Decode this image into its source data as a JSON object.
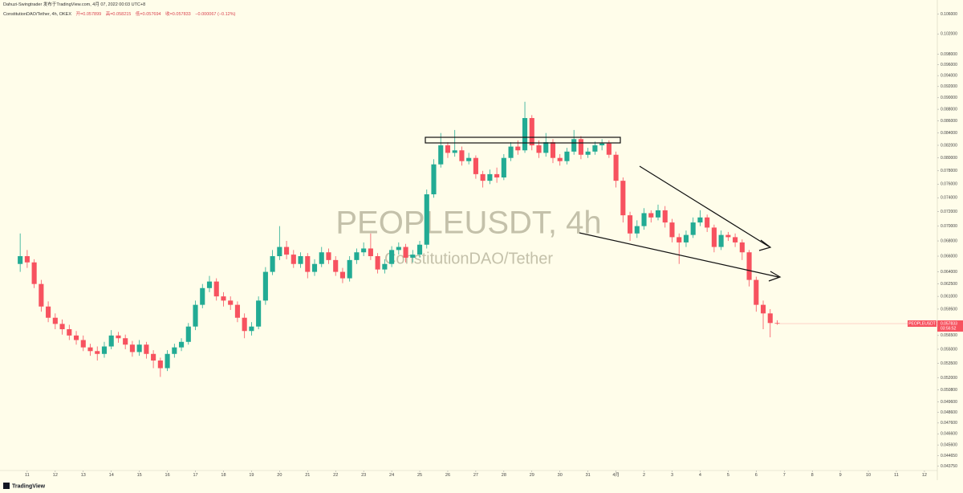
{
  "chart_data": {
    "type": "candlestick",
    "publisher": "Dahuzi-Swingtrader 发布于TradingView.com, 4月 07, 2022 00:03 UTC+8",
    "title": "ConstitutionDAO/Tether, 4h, OKEX",
    "ohlc_labels": [
      "开=0.057899",
      "高=0.058215",
      "低=0.057694",
      "收=0.057833",
      "−0.000067 (−0.12%)"
    ],
    "watermark_symbol": "PEOPLEUSDT, 4h",
    "watermark_name": "ConstitutionDAO/Tether",
    "price_tag": {
      "symbol": "PEOPLEUSDT",
      "price": "0.057833",
      "countdown": "03:56:52"
    },
    "brand": "TradingView",
    "up_color": "#22ab94",
    "down_color": "#f7525f",
    "log_scale": true,
    "grid": false,
    "xlim": [
      10.03,
      43.46
    ],
    "xticks": [
      11,
      12,
      13,
      14,
      15,
      16,
      17,
      18,
      19,
      20,
      21,
      22,
      23,
      24,
      25,
      26,
      27,
      28,
      29,
      30,
      31,
      {
        "value": 32,
        "label": "4月"
      },
      {
        "value": 33,
        "label": "2"
      },
      {
        "value": 34,
        "label": "3"
      },
      {
        "value": 35,
        "label": "4"
      },
      {
        "value": 36,
        "label": "5"
      },
      {
        "value": 37,
        "label": "6"
      },
      {
        "value": 38,
        "label": "7"
      },
      {
        "value": 39,
        "label": "8"
      },
      {
        "value": 40,
        "label": "9"
      },
      {
        "value": 41,
        "label": "10"
      },
      {
        "value": 42,
        "label": "11"
      },
      {
        "value": 43,
        "label": "12"
      }
    ],
    "ylim": [
      0.0431,
      0.1073
    ],
    "yticks": [
      {
        "value": 0.106,
        "label": "0.106000"
      },
      {
        "value": 0.102,
        "label": "0.102000"
      },
      {
        "value": 0.098,
        "label": "0.098000"
      },
      {
        "value": 0.096,
        "label": "0.096000"
      },
      {
        "value": 0.094,
        "label": "0.094000"
      },
      {
        "value": 0.092,
        "label": "0.092000"
      },
      {
        "value": 0.09,
        "label": "0.090000"
      },
      {
        "value": 0.088,
        "label": "0.088000"
      },
      {
        "value": 0.086,
        "label": "0.086000"
      },
      {
        "value": 0.084,
        "label": "0.084000"
      },
      {
        "value": 0.082,
        "label": "0.082000"
      },
      {
        "value": 0.08,
        "label": "0.080000"
      },
      {
        "value": 0.078,
        "label": "0.078000"
      },
      {
        "value": 0.076,
        "label": "0.076000"
      },
      {
        "value": 0.074,
        "label": "0.074000"
      },
      {
        "value": 0.072,
        "label": "0.072000"
      },
      {
        "value": 0.07,
        "label": "0.070000"
      },
      {
        "value": 0.068,
        "label": "0.068000"
      },
      {
        "value": 0.066,
        "label": "0.066000"
      },
      {
        "value": 0.064,
        "label": "0.064000"
      },
      {
        "value": 0.0625,
        "label": "0.062500"
      },
      {
        "value": 0.061,
        "label": "0.061000"
      },
      {
        "value": 0.0595,
        "label": "0.059500"
      },
      {
        "value": 0.0565,
        "label": "0.056500"
      },
      {
        "value": 0.055,
        "label": "0.055000"
      },
      {
        "value": 0.0535,
        "label": "0.053500"
      },
      {
        "value": 0.052,
        "label": "0.052000"
      },
      {
        "value": 0.0508,
        "label": "0.050800"
      },
      {
        "value": 0.0496,
        "label": "0.049600"
      },
      {
        "value": 0.0486,
        "label": "0.048600"
      },
      {
        "value": 0.0476,
        "label": "0.047600"
      },
      {
        "value": 0.0466,
        "label": "0.046600"
      },
      {
        "value": 0.0456,
        "label": "0.045600"
      },
      {
        "value": 0.04465,
        "label": "0.044650"
      },
      {
        "value": 0.04375,
        "label": "0.043750"
      }
    ],
    "x": [
      10.75,
      11,
      11.25,
      11.5,
      11.75,
      12,
      12.25,
      12.5,
      12.75,
      13,
      13.25,
      13.5,
      13.75,
      14,
      14.25,
      14.5,
      14.75,
      15,
      15.25,
      15.5,
      15.75,
      16,
      16.25,
      16.5,
      16.75,
      17,
      17.25,
      17.5,
      17.75,
      18,
      18.25,
      18.5,
      18.75,
      19,
      19.25,
      19.5,
      19.75,
      20,
      20.25,
      20.5,
      20.75,
      21,
      21.25,
      21.5,
      21.75,
      22,
      22.25,
      22.5,
      22.75,
      23,
      23.25,
      23.5,
      23.75,
      24,
      24.25,
      24.5,
      24.75,
      25,
      25.25,
      25.5,
      25.75,
      26,
      26.25,
      26.5,
      26.75,
      27,
      27.25,
      27.5,
      27.75,
      28,
      28.25,
      28.5,
      28.75,
      29,
      29.25,
      29.5,
      29.75,
      30,
      30.25,
      30.5,
      30.75,
      31,
      31.25,
      31.5,
      31.75,
      32,
      32.25,
      32.5,
      32.75,
      33,
      33.25,
      33.5,
      33.75,
      34,
      34.25,
      34.5,
      34.75,
      35,
      35.25,
      35.5,
      35.75,
      36,
      36.25,
      36.5,
      36.75,
      37,
      37.25,
      37.5,
      37.75
    ],
    "open": [
      0.065,
      0.066,
      0.0652,
      0.0625,
      0.0598,
      0.0585,
      0.0578,
      0.0572,
      0.0565,
      0.056,
      0.0552,
      0.0548,
      0.0545,
      0.0553,
      0.0565,
      0.0562,
      0.0555,
      0.0547,
      0.0555,
      0.0545,
      0.0538,
      0.053,
      0.0545,
      0.0552,
      0.0558,
      0.0575,
      0.06,
      0.062,
      0.0628,
      0.061,
      0.0605,
      0.06,
      0.0585,
      0.057,
      0.0575,
      0.0605,
      0.064,
      0.066,
      0.0672,
      0.0662,
      0.065,
      0.066,
      0.064,
      0.065,
      0.0665,
      0.0655,
      0.064,
      0.0632,
      0.0655,
      0.0665,
      0.067,
      0.066,
      0.0643,
      0.065,
      0.0668,
      0.0672,
      0.0658,
      0.0662,
      0.0675,
      0.0745,
      0.079,
      0.082,
      0.0808,
      0.0812,
      0.0795,
      0.08,
      0.0775,
      0.0765,
      0.0775,
      0.077,
      0.08,
      0.0818,
      0.0812,
      0.0865,
      0.082,
      0.0808,
      0.0825,
      0.08,
      0.0795,
      0.081,
      0.083,
      0.0805,
      0.081,
      0.082,
      0.0823,
      0.0805,
      0.0765,
      0.0715,
      0.069,
      0.07,
      0.0718,
      0.0712,
      0.0722,
      0.0705,
      0.0685,
      0.0678,
      0.0688,
      0.0705,
      0.0712,
      0.0698,
      0.0672,
      0.0688,
      0.0685,
      0.0678,
      0.0665,
      0.063,
      0.06,
      0.059,
      0.057899
    ],
    "high": [
      0.069,
      0.0668,
      0.0656,
      0.063,
      0.0604,
      0.059,
      0.0583,
      0.0577,
      0.057,
      0.0565,
      0.0556,
      0.0553,
      0.0558,
      0.0571,
      0.0569,
      0.0566,
      0.0559,
      0.056,
      0.0558,
      0.0549,
      0.0541,
      0.0549,
      0.0556,
      0.0562,
      0.0579,
      0.0605,
      0.0625,
      0.0635,
      0.0632,
      0.0615,
      0.061,
      0.0604,
      0.059,
      0.058,
      0.061,
      0.0646,
      0.0668,
      0.07,
      0.068,
      0.0668,
      0.0665,
      0.0664,
      0.0656,
      0.0672,
      0.067,
      0.066,
      0.0645,
      0.066,
      0.067,
      0.0678,
      0.069,
      0.0664,
      0.0656,
      0.0673,
      0.0678,
      0.0676,
      0.0668,
      0.068,
      0.0752,
      0.0798,
      0.084,
      0.0825,
      0.0845,
      0.0818,
      0.0808,
      0.0804,
      0.078,
      0.0782,
      0.0785,
      0.0806,
      0.0825,
      0.0828,
      0.0893,
      0.087,
      0.0828,
      0.084,
      0.083,
      0.0806,
      0.0816,
      0.0845,
      0.0835,
      0.0816,
      0.0826,
      0.083,
      0.0828,
      0.081,
      0.077,
      0.072,
      0.0708,
      0.0725,
      0.0722,
      0.073,
      0.0728,
      0.071,
      0.069,
      0.0694,
      0.0712,
      0.0722,
      0.0716,
      0.0702,
      0.0694,
      0.0692,
      0.069,
      0.0682,
      0.0668,
      0.0634,
      0.0605,
      0.0595,
      0.058215
    ],
    "low": [
      0.064,
      0.0645,
      0.062,
      0.0592,
      0.058,
      0.0572,
      0.0566,
      0.056,
      0.0555,
      0.0548,
      0.0543,
      0.0538,
      0.0541,
      0.055,
      0.0557,
      0.055,
      0.0542,
      0.0543,
      0.054,
      0.053,
      0.0521,
      0.0527,
      0.0541,
      0.0548,
      0.0555,
      0.0571,
      0.0596,
      0.0615,
      0.0605,
      0.0598,
      0.0594,
      0.058,
      0.0562,
      0.0565,
      0.0572,
      0.06,
      0.0636,
      0.0655,
      0.0656,
      0.0645,
      0.0645,
      0.0632,
      0.0635,
      0.0646,
      0.065,
      0.0635,
      0.0626,
      0.0628,
      0.065,
      0.066,
      0.0655,
      0.0638,
      0.0638,
      0.0646,
      0.0662,
      0.0652,
      0.0652,
      0.0658,
      0.067,
      0.074,
      0.0785,
      0.08,
      0.0802,
      0.0788,
      0.079,
      0.0768,
      0.0755,
      0.076,
      0.0762,
      0.0766,
      0.0795,
      0.0805,
      0.0808,
      0.0812,
      0.08,
      0.0802,
      0.0792,
      0.0788,
      0.079,
      0.0805,
      0.0798,
      0.08,
      0.0805,
      0.0812,
      0.08,
      0.0755,
      0.0705,
      0.068,
      0.0684,
      0.0695,
      0.0705,
      0.0708,
      0.0698,
      0.0678,
      0.065,
      0.0672,
      0.0684,
      0.07,
      0.0692,
      0.0665,
      0.0668,
      0.068,
      0.0672,
      0.0655,
      0.0622,
      0.0592,
      0.0572,
      0.0563,
      0.057694
    ],
    "close": [
      0.066,
      0.0652,
      0.0625,
      0.0598,
      0.0585,
      0.0578,
      0.0572,
      0.0565,
      0.056,
      0.0552,
      0.0548,
      0.0545,
      0.0553,
      0.0565,
      0.0562,
      0.0555,
      0.0547,
      0.0555,
      0.0545,
      0.0538,
      0.053,
      0.0545,
      0.0552,
      0.0558,
      0.0575,
      0.06,
      0.062,
      0.0628,
      0.061,
      0.0605,
      0.06,
      0.0585,
      0.057,
      0.0575,
      0.0605,
      0.064,
      0.066,
      0.0672,
      0.0662,
      0.065,
      0.066,
      0.064,
      0.065,
      0.0665,
      0.0655,
      0.064,
      0.0632,
      0.0655,
      0.0665,
      0.067,
      0.066,
      0.0643,
      0.065,
      0.0668,
      0.0672,
      0.0658,
      0.0662,
      0.0675,
      0.0745,
      0.079,
      0.082,
      0.0808,
      0.0812,
      0.0795,
      0.08,
      0.0775,
      0.0765,
      0.0775,
      0.077,
      0.08,
      0.0818,
      0.0812,
      0.0865,
      0.082,
      0.0808,
      0.0825,
      0.08,
      0.0795,
      0.081,
      0.083,
      0.0805,
      0.081,
      0.082,
      0.0823,
      0.0805,
      0.0765,
      0.0715,
      0.069,
      0.07,
      0.0718,
      0.0712,
      0.0722,
      0.0705,
      0.0685,
      0.0678,
      0.0688,
      0.0705,
      0.0712,
      0.0698,
      0.0672,
      0.0688,
      0.0685,
      0.0678,
      0.0665,
      0.063,
      0.06,
      0.059,
      0.0579,
      0.057833
    ]
  }
}
